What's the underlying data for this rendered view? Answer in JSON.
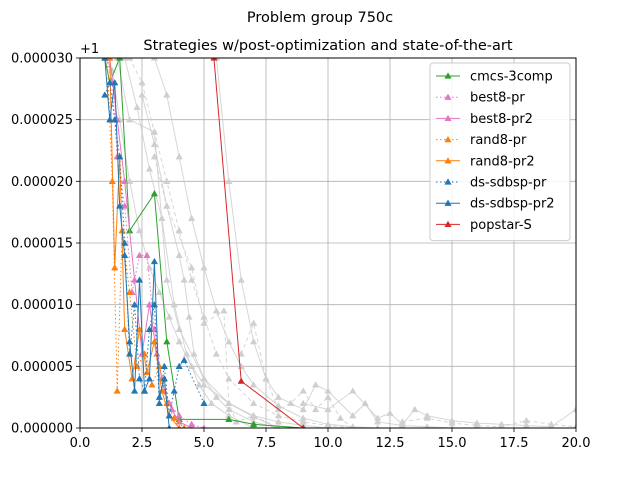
{
  "chart_data": {
    "type": "line",
    "title": "Problem group 750c",
    "subtitle": "Strategies w/post-optimization and state-of-the-art",
    "offset_label": "+1",
    "xlim": [
      0,
      20
    ],
    "ylim": [
      0,
      3e-05
    ],
    "x_ticks": [
      "0.0",
      "2.5",
      "5.0",
      "7.5",
      "10.0",
      "12.5",
      "15.0",
      "17.5",
      "20.0"
    ],
    "y_ticks": [
      "0.000000",
      "0.000005",
      "0.000010",
      "0.000015",
      "0.000020",
      "0.000025",
      "0.000030"
    ],
    "grid": true,
    "legend_position": "top-right",
    "background_series": [
      {
        "x": [
          1.0,
          1.3,
          1.6,
          2.0,
          2.4,
          2.8,
          3.2,
          3.6,
          4.0,
          4.5,
          5.0,
          6.0,
          7.0,
          8.0,
          9.0,
          10.0
        ],
        "y": [
          3e-05,
          2.9e-05,
          2.5e-05,
          2e-05,
          1.6e-05,
          1.3e-05,
          1.1e-05,
          9e-06,
          7e-06,
          5e-06,
          3.5e-06,
          2e-06,
          1e-06,
          5e-07,
          2e-07,
          0.0
        ]
      },
      {
        "x": [
          2.0,
          2.5,
          3.0,
          3.5,
          4.0,
          4.5,
          5.0,
          5.5,
          6.0,
          7.0,
          8.0,
          9.0,
          10.0,
          11.0
        ],
        "y": [
          3e-05,
          2.8e-05,
          2.4e-05,
          2e-05,
          1.6e-05,
          1.2e-05,
          9e-06,
          6e-06,
          4e-06,
          2e-06,
          1e-06,
          5e-07,
          2e-07,
          0.0
        ]
      },
      {
        "x": [
          3.0,
          3.5,
          4.0,
          4.5,
          5.0,
          5.5,
          6.0,
          6.5,
          7.0,
          8.0,
          9.0,
          10.0,
          11.0,
          12.0
        ],
        "y": [
          3e-05,
          2.7e-05,
          2.2e-05,
          1.7e-05,
          1.3e-05,
          9.5e-06,
          7e-06,
          5e-06,
          3.5e-06,
          1.8e-06,
          8e-07,
          3e-07,
          1e-07,
          0.0
        ]
      },
      {
        "x": [
          2.5,
          3.0,
          3.5,
          4.0,
          4.2,
          4.4,
          4.6,
          5.0,
          5.5,
          6.0,
          7.0,
          8.0
        ],
        "y": [
          2.7e-05,
          2.3e-05,
          1.8e-05,
          1.4e-05,
          1.2e-05,
          9e-06,
          6e-06,
          4e-06,
          2.5e-06,
          1.5e-06,
          5e-07,
          0.0
        ]
      },
      {
        "x": [
          3.0,
          3.5,
          4.5,
          5.0,
          5.8,
          6.0,
          6.3,
          7.0,
          8.0,
          9.0
        ],
        "y": [
          2.2e-05,
          1.8e-05,
          1.3e-05,
          8.5e-06,
          9.5e-06,
          2e-06,
          5e-07,
          1e-06,
          0.0,
          0.0
        ]
      },
      {
        "x": [
          5.5,
          6.0,
          6.5,
          7.0,
          7.5,
          8.0,
          9.0,
          9.5,
          10.0,
          11.0,
          11.5,
          12.0,
          13.0,
          14.0,
          15.0
        ],
        "y": [
          3e-05,
          2e-05,
          1.2e-05,
          7e-06,
          4e-06,
          2.5e-06,
          1.5e-06,
          3.5e-06,
          3e-06,
          1e-06,
          2e-06,
          5e-07,
          2e-07,
          1e-07,
          0.0
        ]
      },
      {
        "x": [
          1.5,
          2.0,
          3.0,
          3.5,
          4.0,
          5.0,
          6.0,
          7.0,
          8.0
        ],
        "y": [
          3e-05,
          2.5e-05,
          2.4e-05,
          1.2e-05,
          8e-06,
          4e-06,
          2e-06,
          9e-07,
          0.0
        ]
      },
      {
        "x": [
          6.5,
          7.0,
          7.5,
          8.0,
          8.5,
          9.0,
          9.5,
          10.0,
          10.5,
          11.0
        ],
        "y": [
          6e-06,
          8.5e-06,
          4e-06,
          1.5e-06,
          2e-06,
          3e-06,
          1.5e-06,
          2.5e-06,
          8e-07,
          0.0
        ]
      },
      {
        "x": [
          9.0,
          10.0,
          11.0,
          12.0,
          12.5,
          13.0,
          13.5,
          14.0,
          15.0,
          16.0,
          17.0,
          18.0,
          19.0,
          20.0
        ],
        "y": [
          2e-06,
          1.5e-06,
          3e-06,
          8e-07,
          1.2e-06,
          3e-07,
          1.5e-06,
          1e-06,
          6e-07,
          4e-07,
          3e-07,
          2e-07,
          1e-07,
          1.5e-06
        ]
      },
      {
        "x": [
          1.8,
          2.3,
          2.8,
          3.3,
          3.8,
          4.3,
          4.8,
          5.3,
          6.0,
          7.0
        ],
        "y": [
          3e-05,
          2.6e-05,
          2.1e-05,
          1.7e-05,
          1e-05,
          6e-06,
          3.5e-06,
          2e-06,
          1e-06,
          0.0
        ]
      },
      {
        "x": [
          13.0,
          14.0,
          15.0,
          16.0,
          17.0,
          18.0,
          19.0,
          20.0
        ],
        "y": [
          5e-07,
          8e-07,
          4e-07,
          2e-07,
          1e-07,
          6e-07,
          3e-07,
          1e-07
        ]
      }
    ],
    "series": [
      {
        "name": "cmcs-3comp",
        "color": "#2ca02c",
        "dash": "solid",
        "x": [
          1.0,
          1.2,
          1.6,
          2.0,
          3.0,
          3.5,
          4.0,
          6.0,
          7.0,
          9.0
        ],
        "y": [
          3e-05,
          2.8e-05,
          3e-05,
          1.6e-05,
          1.9e-05,
          7e-06,
          7e-07,
          7e-07,
          3e-07,
          0.0
        ]
      },
      {
        "name": "best8-pr",
        "color": "#e377c2",
        "dash": "dotted",
        "x": [
          1.1,
          1.3,
          1.5,
          1.8,
          2.1,
          2.4,
          2.7,
          3.0,
          3.3,
          3.6,
          4.0,
          4.5,
          5.0
        ],
        "y": [
          3e-05,
          2.8e-05,
          2.2e-05,
          1.8e-05,
          1.1e-05,
          1.4e-05,
          1.4e-05,
          8e-06,
          4e-06,
          2e-06,
          1e-06,
          3e-07,
          0.0
        ]
      },
      {
        "name": "best8-pr2",
        "color": "#e377c2",
        "dash": "solid",
        "x": [
          1.2,
          1.5,
          1.8,
          2.2,
          2.5,
          2.8,
          3.1,
          3.4,
          3.7,
          4.0,
          4.5
        ],
        "y": [
          3e-05,
          2.5e-05,
          2e-05,
          1.2e-05,
          6e-06,
          1e-05,
          6e-06,
          3e-06,
          1.5e-06,
          5e-07,
          0.0
        ]
      },
      {
        "name": "rand8-pr",
        "color": "#ff7f0e",
        "dash": "dotted",
        "x": [
          1.1,
          1.3,
          1.5,
          1.7,
          2.0,
          2.3,
          2.6,
          2.9,
          3.2,
          3.5,
          3.8,
          4.2
        ],
        "y": [
          3e-05,
          2e-05,
          3e-06,
          1.6e-05,
          1.1e-05,
          5e-06,
          6e-06,
          3.5e-06,
          5e-06,
          2e-06,
          8e-07,
          0.0
        ]
      },
      {
        "name": "rand8-pr2",
        "color": "#ff7f0e",
        "dash": "solid",
        "x": [
          1.2,
          1.4,
          1.6,
          1.8,
          2.1,
          2.4,
          2.7,
          3.0,
          3.3,
          3.6,
          4.0
        ],
        "y": [
          3e-05,
          1.3e-05,
          2.2e-05,
          8e-06,
          4e-06,
          8e-06,
          4.5e-06,
          7e-06,
          3e-06,
          1e-06,
          0.0
        ]
      },
      {
        "name": "ds-sdbsp-pr",
        "color": "#1f77b4",
        "dash": "dotted",
        "x": [
          1.0,
          1.2,
          1.4,
          1.6,
          1.8,
          2.0,
          2.2,
          2.4,
          2.6,
          2.8,
          3.0,
          3.2,
          3.4,
          3.6,
          3.8,
          4.0,
          4.2,
          5.0
        ],
        "y": [
          2.7e-05,
          2.8e-05,
          2.5e-05,
          2.2e-05,
          1.5e-05,
          6e-06,
          1e-05,
          4e-06,
          3e-06,
          8e-06,
          1e-05,
          2e-06,
          5e-06,
          1e-06,
          3e-06,
          5e-06,
          5.5e-06,
          2e-06
        ]
      },
      {
        "name": "ds-sdbsp-pr2",
        "color": "#1f77b4",
        "dash": "solid",
        "x": [
          1.0,
          1.2,
          1.4,
          1.6,
          1.8,
          2.0,
          2.2,
          2.4,
          2.6,
          2.8,
          3.0,
          3.2,
          3.4,
          3.6
        ],
        "y": [
          3e-05,
          2.5e-05,
          2.8e-05,
          1.8e-05,
          1.4e-05,
          7e-06,
          3e-06,
          1.2e-05,
          3e-06,
          4e-06,
          1.35e-05,
          2.5e-06,
          4e-06,
          0.0
        ]
      },
      {
        "name": "popstar-S",
        "color": "#d62728",
        "dash": "solid",
        "x": [
          5.4,
          6.5,
          9.0
        ],
        "y": [
          3e-05,
          3.8e-06,
          0.0
        ]
      }
    ]
  }
}
